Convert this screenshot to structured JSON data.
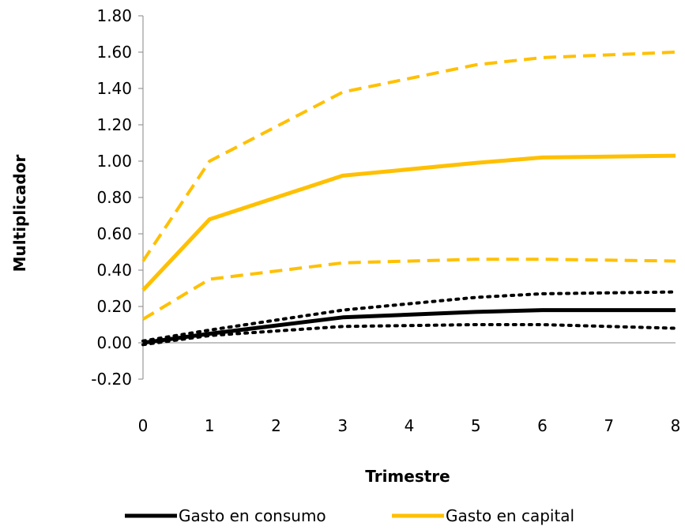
{
  "chart_data": {
    "type": "line",
    "xlabel": "Trimestre",
    "ylabel": "Multiplicador",
    "xlim": [
      0,
      8
    ],
    "ylim": [
      -0.2,
      1.8
    ],
    "x_ticks": [
      "0",
      "1",
      "2",
      "3",
      "4",
      "5",
      "6",
      "7",
      "8"
    ],
    "y_ticks": [
      "-0.20",
      "0.00",
      "0.20",
      "0.40",
      "0.60",
      "0.80",
      "1.00",
      "1.20",
      "1.40",
      "1.60",
      "1.80"
    ],
    "y_tick_values": [
      -0.2,
      0.0,
      0.2,
      0.4,
      0.6,
      0.8,
      1.0,
      1.2,
      1.4,
      1.6,
      1.8
    ],
    "x": [
      0,
      1,
      3,
      5,
      6,
      8
    ],
    "grid": false,
    "legend_position": "bottom",
    "series": [
      {
        "name": "Gasto en consumo",
        "color": "#000000",
        "style": "solid",
        "in_legend": true,
        "values": [
          0.0,
          0.05,
          0.14,
          0.17,
          0.18,
          0.18
        ]
      },
      {
        "name": "",
        "color": "#000000",
        "style": "dotted",
        "in_legend": false,
        "values": [
          0.01,
          0.07,
          0.18,
          0.25,
          0.27,
          0.28
        ]
      },
      {
        "name": "",
        "color": "#000000",
        "style": "dotted",
        "in_legend": false,
        "values": [
          -0.01,
          0.04,
          0.09,
          0.1,
          0.1,
          0.08
        ]
      },
      {
        "name": "Gasto en capital",
        "color": "#FFC000",
        "style": "solid",
        "in_legend": true,
        "values": [
          0.29,
          0.68,
          0.92,
          0.99,
          1.02,
          1.03
        ]
      },
      {
        "name": "",
        "color": "#FFC000",
        "style": "dashed",
        "in_legend": false,
        "values": [
          0.45,
          1.0,
          1.38,
          1.53,
          1.57,
          1.6
        ]
      },
      {
        "name": "",
        "color": "#FFC000",
        "style": "dashed",
        "in_legend": false,
        "values": [
          0.13,
          0.35,
          0.44,
          0.46,
          0.46,
          0.45
        ]
      }
    ]
  }
}
